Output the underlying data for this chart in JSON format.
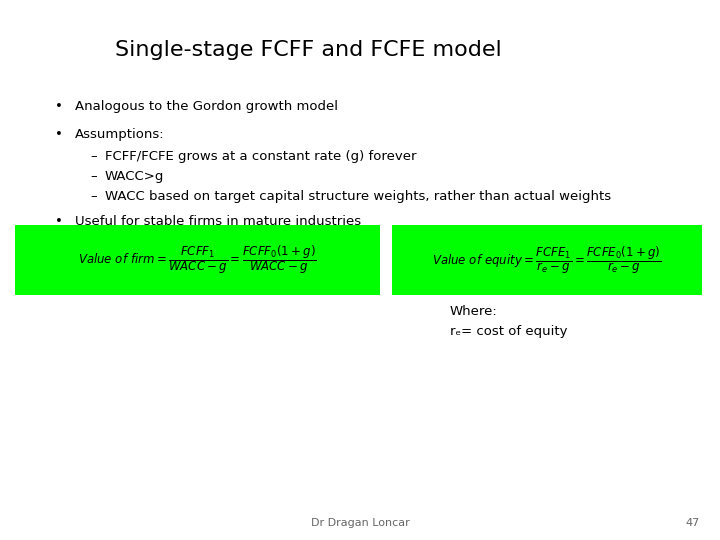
{
  "title": "Single-stage FCFF and FCFE model",
  "title_fontsize": 16,
  "background_color": "#ffffff",
  "bullet1": "Analogous to the Gordon growth model",
  "bullet2": "Assumptions:",
  "sub1": "FCFF/FCFE grows at a constant rate (g) forever",
  "sub2": "WACC>g",
  "sub3": "WACC based on target capital structure weights, rather than actual weights",
  "bullet3": "Useful for stable firms in mature industries",
  "green_color": "#00ff00",
  "formula_text_color": "#000000",
  "footer_text": "Dr Dragan Loncar",
  "footer_page": "47",
  "where_text": "Where:",
  "re_text": "rₑ= cost of equity"
}
